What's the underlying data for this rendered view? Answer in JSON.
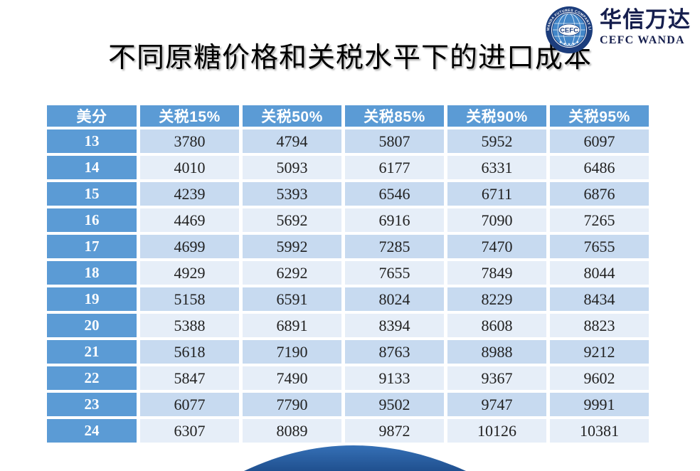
{
  "title": "不同原糖价格和关税水平下的进口成本",
  "logo": {
    "brand_cn": "华信万达",
    "brand_en": "CEFC WANDA",
    "emblem_center": "CEFC",
    "emblem_ring_text": "CEFC WANDA FUTURES COMPANY LIMITED",
    "emblem_stars": "★ ★ ★ ★ ★"
  },
  "colors": {
    "header_blue": "#5b9bd5",
    "row_band_dark": "#c7daf0",
    "row_band_light": "#e6eef8",
    "cell_text": "#212121",
    "brand_navy": "#151e4d",
    "emblem_navy": "#1c3d7c",
    "emblem_globe_blue": "#4286c8",
    "wave_blue_top": "#3570b6",
    "wave_blue_bottom": "#20508f"
  },
  "chart_data": {
    "type": "table",
    "title": "不同原糖价格和关税水平下的进口成本",
    "columns": [
      "美分",
      "关税15%",
      "关税50%",
      "关税85%",
      "关税90%",
      "关税95%"
    ],
    "rows": [
      [
        13,
        3780,
        4794,
        5807,
        5952,
        6097
      ],
      [
        14,
        4010,
        5093,
        6177,
        6331,
        6486
      ],
      [
        15,
        4239,
        5393,
        6546,
        6711,
        6876
      ],
      [
        16,
        4469,
        5692,
        6916,
        7090,
        7265
      ],
      [
        17,
        4699,
        5992,
        7285,
        7470,
        7655
      ],
      [
        18,
        4929,
        6292,
        7655,
        7849,
        8044
      ],
      [
        19,
        5158,
        6591,
        8024,
        8229,
        8434
      ],
      [
        20,
        5388,
        6891,
        8394,
        8608,
        8823
      ],
      [
        21,
        5618,
        7190,
        8763,
        8988,
        9212
      ],
      [
        22,
        5847,
        7490,
        9133,
        9367,
        9602
      ],
      [
        23,
        6077,
        7790,
        9502,
        9747,
        9991
      ],
      [
        24,
        6307,
        8089,
        9872,
        10126,
        10381
      ]
    ]
  }
}
